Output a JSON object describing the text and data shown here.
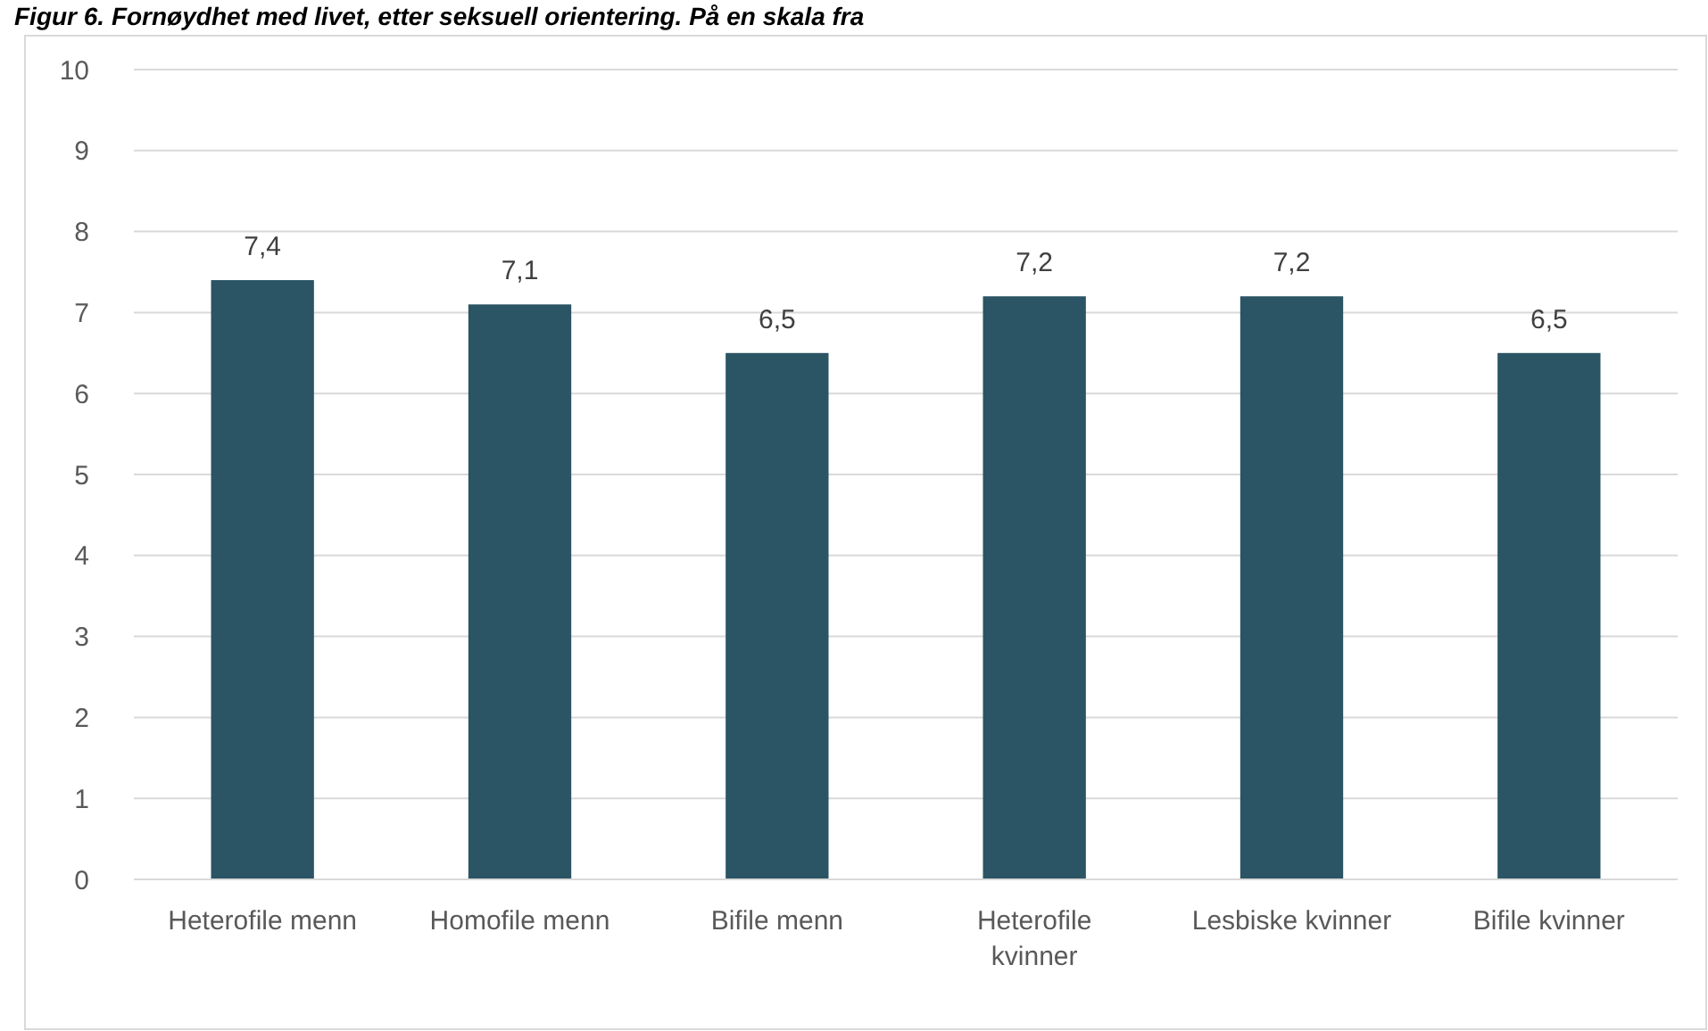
{
  "chart_data": {
    "type": "bar",
    "title": "Figur 6. Fornøydhet med livet, etter seksuell orientering. På en skala fra",
    "categories": [
      "Heterofile menn",
      "Homofile menn",
      "Bifile menn",
      "Heterofile kvinner",
      "Lesbiske kvinner",
      "Bifile kvinner"
    ],
    "values": [
      7.4,
      7.1,
      6.5,
      7.2,
      7.2,
      6.5
    ],
    "color": "#2b5464",
    "value_labels": [
      "7,4",
      "7,1",
      "6,5",
      "7,2",
      "7,2",
      "6,5"
    ],
    "ylim": [
      0,
      10
    ],
    "yticks": [
      0,
      1,
      2,
      3,
      4,
      5,
      6,
      7,
      8,
      9,
      10
    ],
    "grid": "y"
  }
}
